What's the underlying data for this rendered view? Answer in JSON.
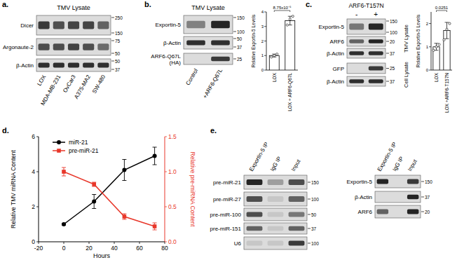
{
  "panels": [
    {
      "letter": "a.",
      "blots": [
        {
          "title": "TMV Lysate",
          "lanes": [
            "LOX",
            "MDA-MB-231",
            "OvCar3",
            "A375-MA2",
            "SW-480"
          ],
          "rows": [
            {
              "label": "Dicer",
              "markers": [
                250,
                150
              ],
              "intensity": [
                0.8,
                0.7,
                0.75,
                0.75,
                0.6
              ]
            },
            {
              "label": "Argonaute-2",
              "markers": [
                75,
                50
              ],
              "intensity": [
                0.7,
                0.7,
                0.75,
                0.7,
                0.55
              ]
            },
            {
              "label": "β-Actin",
              "markers": [
                50,
                37
              ],
              "intensity": [
                0.85,
                0.85,
                0.85,
                0.85,
                0.85
              ]
            }
          ]
        }
      ]
    },
    {
      "letter": "b.",
      "blots": [
        {
          "title": "TMV Lysate",
          "lanes": [
            "Control",
            "+ARF6-Q67L"
          ],
          "rows": [
            {
              "label": "Exportin-5",
              "markers": [
                150,
                100
              ],
              "intensity": [
                0.45,
                0.9
              ]
            },
            {
              "label": "β-Actin",
              "markers": [
                50,
                37
              ],
              "intensity": [
                0.85,
                0.85
              ]
            },
            {
              "label": [
                "ARF6-Q67L",
                "(HA)"
              ],
              "markers": [
                25
              ],
              "intensity": [
                0,
                0.8
              ]
            }
          ]
        }
      ]
    },
    {
      "letter": "c.",
      "blots": [
        {
          "title": "ARF6-T157N",
          "lanes": [
            "-",
            "+"
          ],
          "groups": [
            {
              "label": "TMV Lysate",
              "rows": [
                {
                  "label": "Exportin-5",
                  "markers": [
                    150,
                    100
                  ],
                  "intensity": [
                    0.5,
                    0.9
                  ]
                },
                {
                  "label": "ARF6",
                  "markers": [
                    20
                  ],
                  "intensity": [
                    0.6,
                    0.9
                  ]
                },
                {
                  "label": "β-Actin",
                  "markers": [
                    37
                  ],
                  "intensity": [
                    0.85,
                    0.85
                  ]
                }
              ]
            },
            {
              "label": "Cell Lysate",
              "rows": [
                {
                  "label": "GFP",
                  "markers": [
                    25
                  ],
                  "intensity": [
                    0,
                    0.8
                  ]
                },
                {
                  "label": "β-Actin",
                  "markers": [
                    37
                  ],
                  "intensity": [
                    0.85,
                    0.85
                  ]
                }
              ]
            }
          ]
        }
      ]
    },
    {
      "letter": "d."
    },
    {
      "letter": "e.",
      "blots": [
        {
          "lanes": [
            "Exportin-5 IP",
            "IgG IP",
            "Input"
          ],
          "rows": [
            {
              "label": "pre-miR-21",
              "markers": [
                150
              ],
              "intensity": [
                0.9,
                0.3,
                0.7
              ]
            },
            {
              "label": "pre-miR-27",
              "markers": [
                100
              ],
              "intensity": [
                0.7,
                0.1,
                0.6
              ]
            },
            {
              "label": "pre-miR-100",
              "markers": [
                50
              ],
              "intensity": [
                0.7,
                0.1,
                0.5
              ]
            },
            {
              "label": "pre-miR-151",
              "markers": [
                37
              ],
              "intensity": [
                0.6,
                0.1,
                0.6
              ]
            },
            {
              "label": "U6",
              "markers": [
                100
              ],
              "intensity": [
                0.1,
                0.1,
                0.8
              ]
            }
          ]
        },
        {
          "lanes": [
            "Exportin-5 IP",
            "IgG IP",
            "Input"
          ],
          "rows": [
            {
              "label": "Exportin-5",
              "markers": [
                150
              ],
              "intensity": [
                0.9,
                0,
                0.8
              ]
            },
            {
              "label": "β-Actin",
              "markers": [
                37
              ],
              "intensity": [
                0,
                0,
                0.9
              ]
            },
            {
              "label": "ARF6",
              "markers": [
                20
              ],
              "intensity": [
                0.6,
                0,
                0.9
              ]
            }
          ]
        }
      ]
    }
  ],
  "chart_data": [
    {
      "type": "bar",
      "categories": [
        "LOX",
        "LOX + ARF6-Q67L"
      ],
      "values": [
        1.0,
        3.4
      ],
      "errors": [
        0.1,
        0.3
      ],
      "points": [
        [
          0.9,
          1.0,
          1.1
        ],
        [
          3.1,
          3.5,
          3.7
        ]
      ],
      "ylabel": "Relative Exportin-5 Levels",
      "ylim": [
        0,
        4
      ],
      "yticks": [
        0,
        1,
        2,
        3,
        4
      ],
      "annotation": "8.75x10⁻⁵",
      "color": "#ffffff",
      "grid": false
    },
    {
      "type": "bar",
      "categories": [
        "LOX",
        "LOX +ARF6-T157N"
      ],
      "values": [
        1.0,
        1.7
      ],
      "errors": [
        0.15,
        0.35
      ],
      "points": [
        [
          0.85,
          1.0,
          1.1
        ],
        [
          1.3,
          1.75,
          2.0
        ]
      ],
      "ylabel": "Relative Exportin-5 Levels",
      "ylim": [
        0,
        2.5
      ],
      "yticks": [
        0,
        1,
        2
      ],
      "annotation": "0.0251",
      "color": "#ffffff",
      "grid": false
    },
    {
      "type": "line",
      "x": [
        0,
        24,
        48,
        72
      ],
      "series": [
        {
          "name": "miR-21",
          "color": "#000000",
          "marker": "circle",
          "values": [
            1.0,
            2.3,
            4.1,
            4.9
          ],
          "errors": [
            0.05,
            0.4,
            0.6,
            0.5
          ]
        },
        {
          "name": "pre-miR-21",
          "color": "#e8372a",
          "marker": "square",
          "axis": "y2",
          "values": [
            1.0,
            0.82,
            0.36,
            0.22
          ],
          "errors": [
            0.06,
            0.03,
            0.04,
            0.05
          ]
        }
      ],
      "xlabel": "Hours",
      "ylabel": "Relative TMV miRNA Content",
      "y2label": "Relative pre-miRNA Content",
      "xlim": [
        -20,
        80
      ],
      "xticks": [
        -20,
        0,
        20,
        40,
        60,
        80
      ],
      "ylim": [
        0,
        6
      ],
      "yticks": [
        0,
        2,
        4,
        6
      ],
      "y2lim": [
        0,
        1.5
      ],
      "y2ticks": [
        {
          "value": 0,
          "label": "0.0"
        },
        {
          "value": 0.5,
          "label": "0.5"
        },
        {
          "value": 1,
          "label": "1.0"
        },
        {
          "value": 1.5,
          "label": "1.5"
        }
      ],
      "legend": "upper left",
      "grid": false
    }
  ]
}
